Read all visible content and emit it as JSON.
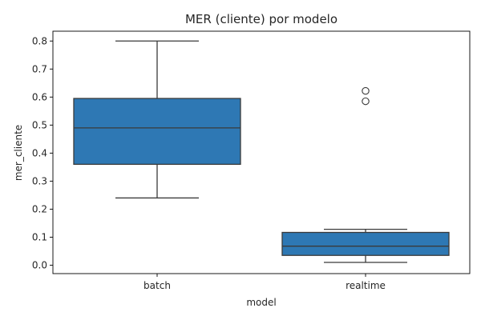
{
  "chart_data": {
    "type": "box",
    "title": "MER (cliente) por modelo",
    "xlabel": "model",
    "ylabel": "mer_cliente",
    "ylim": [
      -0.03,
      0.835
    ],
    "yticks": [
      0.0,
      0.1,
      0.2,
      0.3,
      0.4,
      0.5,
      0.6,
      0.7,
      0.8
    ],
    "ytick_labels": [
      "0.0",
      "0.1",
      "0.2",
      "0.3",
      "0.4",
      "0.5",
      "0.6",
      "0.7",
      "0.8"
    ],
    "grid": false,
    "box_color": "#2e78b4",
    "line_color": "#3a3a3a",
    "categories": [
      "batch",
      "realtime"
    ],
    "boxes": [
      {
        "category": "batch",
        "whisker_low": 0.24,
        "q1": 0.36,
        "median": 0.49,
        "q3": 0.595,
        "whisker_high": 0.8,
        "outliers": []
      },
      {
        "category": "realtime",
        "whisker_low": 0.01,
        "q1": 0.035,
        "median": 0.068,
        "q3": 0.117,
        "whisker_high": 0.128,
        "outliers": [
          0.622,
          0.585
        ]
      }
    ]
  }
}
